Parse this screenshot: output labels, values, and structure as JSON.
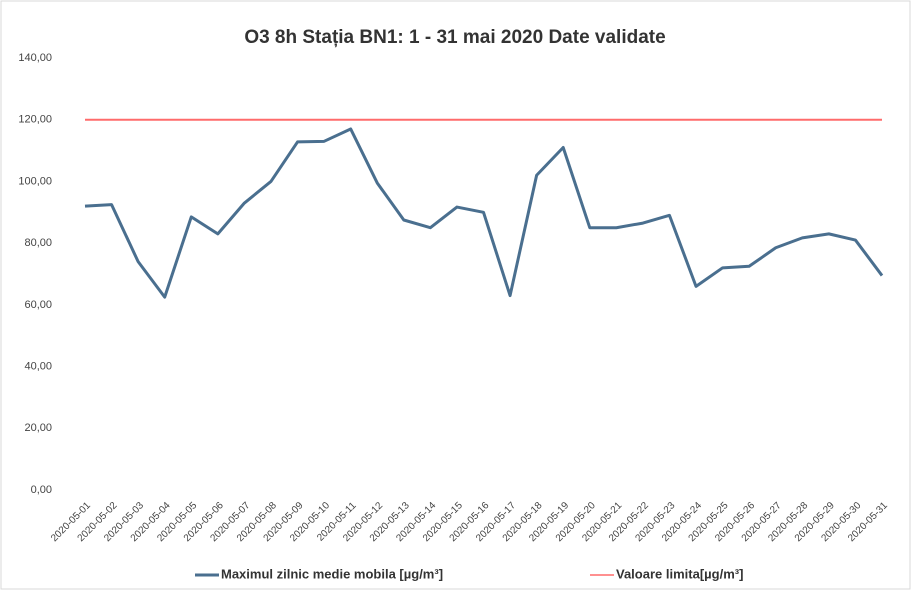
{
  "chart_data": {
    "type": "line",
    "title": "O3 8h Stația BN1: 1 - 31 mai 2020 Date validate",
    "categories": [
      "2020-05-01",
      "2020-05-02",
      "2020-05-03",
      "2020-05-04",
      "2020-05-05",
      "2020-05-06",
      "2020-05-07",
      "2020-05-08",
      "2020-05-09",
      "2020-05-10",
      "2020-05-11",
      "2020-05-12",
      "2020-05-13",
      "2020-05-14",
      "2020-05-15",
      "2020-05-16",
      "2020-05-17",
      "2020-05-18",
      "2020-05-19",
      "2020-05-20",
      "2020-05-21",
      "2020-05-22",
      "2020-05-23",
      "2020-05-24",
      "2020-05-25",
      "2020-05-26",
      "2020-05-27",
      "2020-05-28",
      "2020-05-29",
      "2020-05-30",
      "2020-05-31"
    ],
    "series": [
      {
        "name": "Maximul zilnic medie mobila [µg/m³]",
        "color": "#4a6f8f",
        "values": [
          92,
          92.5,
          74,
          62.5,
          88.5,
          83,
          93,
          100,
          112.8,
          113,
          117,
          99.5,
          87.5,
          85,
          91.7,
          90,
          63,
          102,
          111,
          85,
          85,
          86.5,
          89,
          66,
          72,
          72.5,
          78.5,
          81.7,
          83,
          81,
          69.5
        ]
      },
      {
        "name": "Valoare limita[µg/m³]",
        "color": "#ff6b6b",
        "values": [
          120,
          120,
          120,
          120,
          120,
          120,
          120,
          120,
          120,
          120,
          120,
          120,
          120,
          120,
          120,
          120,
          120,
          120,
          120,
          120,
          120,
          120,
          120,
          120,
          120,
          120,
          120,
          120,
          120,
          120,
          120
        ]
      }
    ],
    "ylim": [
      0,
      140
    ],
    "yticks": [
      {
        "value": 0,
        "label": "0,00"
      },
      {
        "value": 20,
        "label": "20,00"
      },
      {
        "value": 40,
        "label": "40,00"
      },
      {
        "value": 60,
        "label": "60,00"
      },
      {
        "value": 80,
        "label": "80,00"
      },
      {
        "value": 100,
        "label": "100,00"
      },
      {
        "value": 120,
        "label": "120,00"
      },
      {
        "value": 140,
        "label": "140,00"
      }
    ],
    "grid": false,
    "legend": "bottom"
  }
}
